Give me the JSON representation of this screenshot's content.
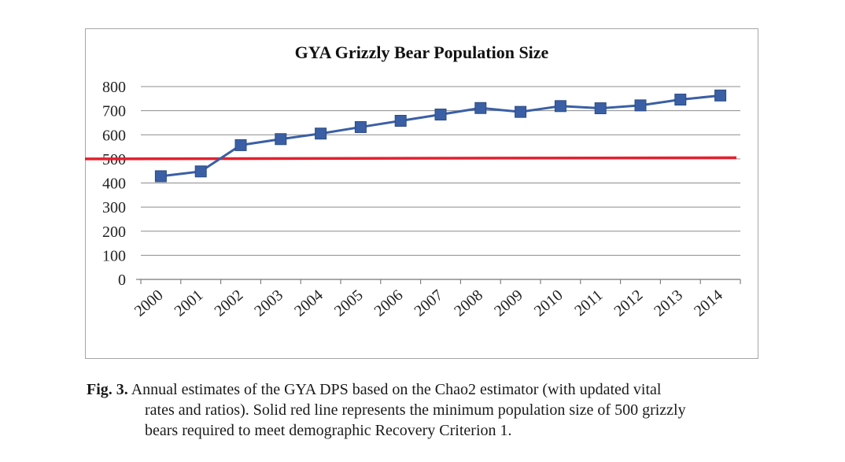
{
  "chart_data": {
    "type": "line",
    "title": "GYA Grizzly Bear Population Size",
    "categories": [
      "2000",
      "2001",
      "2002",
      "2003",
      "2004",
      "2005",
      "2006",
      "2007",
      "2008",
      "2009",
      "2010",
      "2011",
      "2012",
      "2013",
      "2014"
    ],
    "series": [
      {
        "values": [
          428,
          448,
          557,
          582,
          605,
          632,
          658,
          684,
          711,
          695,
          719,
          710,
          722,
          746,
          763
        ],
        "color": "#3a5fa5",
        "marker": "square"
      }
    ],
    "reference_line": {
      "value": 500,
      "color": "#e4202e"
    },
    "ylim": [
      0,
      800
    ],
    "yticks": [
      0,
      100,
      200,
      300,
      400,
      500,
      600,
      700,
      800
    ],
    "grid": true,
    "xlabel": "",
    "ylabel": ""
  },
  "caption": {
    "label": "Fig. 3.",
    "line1": "Annual estimates of the GYA DPS based on the Chao2 estimator (with updated vital",
    "line2": "rates and ratios).  Solid red line represents the minimum population size of 500 grizzly",
    "line3": "bears required to meet demographic Recovery Criterion 1."
  }
}
